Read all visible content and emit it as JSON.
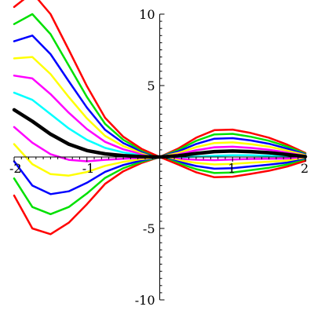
{
  "chart_data": {
    "type": "line",
    "title": "",
    "xlabel": "",
    "ylabel": "",
    "xlim": [
      -2,
      2
    ],
    "ylim": [
      -10,
      10
    ],
    "grid": false,
    "legend": "none",
    "x_ticks": [
      {
        "value": -2,
        "label": "-2"
      },
      {
        "value": -1,
        "label": "-1"
      },
      {
        "value": 1,
        "label": "1"
      },
      {
        "value": 2,
        "label": "2"
      }
    ],
    "y_ticks": [
      {
        "value": 10,
        "label": "10"
      },
      {
        "value": 5,
        "label": "5"
      },
      {
        "value": -5,
        "label": "-5"
      },
      {
        "value": -10,
        "label": "-10"
      }
    ],
    "curve_family": {
      "x": [
        -2,
        -1.75,
        -1.5,
        -1.25,
        -1,
        -0.75,
        -0.5,
        -0.25,
        0,
        0.25,
        0.5,
        0.75,
        1,
        1.25,
        1.5,
        1.75,
        2
      ],
      "base_values": [
        3.3,
        2.5,
        1.6,
        0.9,
        0.45,
        0.22,
        0.1,
        0.03,
        0,
        0.08,
        0.25,
        0.38,
        0.42,
        0.38,
        0.3,
        0.17,
        0.03
      ],
      "slope_values": [
        -1.2,
        -1.5,
        -1.4,
        -1.1,
        -0.75,
        -0.42,
        -0.22,
        -0.09,
        0,
        0.1,
        0.22,
        0.3,
        0.3,
        0.26,
        0.21,
        0.14,
        0.05
      ],
      "right_x": [
        0,
        0.25,
        0.5,
        0.75,
        1,
        1.25,
        1.5,
        1.75,
        2
      ]
    },
    "series": [
      {
        "k": 5,
        "color": "#ff0000",
        "line_width": 2.5
      },
      {
        "k": 4,
        "color": "#00e000",
        "line_width": 2.5
      },
      {
        "k": 3,
        "color": "#0000ff",
        "line_width": 2.5
      },
      {
        "k": 2,
        "color": "#ffff00",
        "line_width": 2.5
      },
      {
        "k": 1,
        "color": "#ff00ff",
        "line_width": 2.5
      },
      {
        "k": 0,
        "color": "#00ffff",
        "line_width": 2.5
      },
      {
        "k": -1,
        "color": "#00ffff",
        "line_width": 2.5
      },
      {
        "k": -2,
        "color": "#ff00ff",
        "line_width": 2.5
      },
      {
        "k": -3,
        "color": "#ffff00",
        "line_width": 2.5
      },
      {
        "k": -4,
        "color": "#0000ff",
        "line_width": 2.5
      },
      {
        "k": -5,
        "color": "#00e000",
        "line_width": 2.5
      },
      {
        "k": -6,
        "color": "#ff0000",
        "line_width": 2.5
      },
      {
        "k": "base",
        "color": "#000000",
        "line_width": 4.5
      }
    ]
  }
}
